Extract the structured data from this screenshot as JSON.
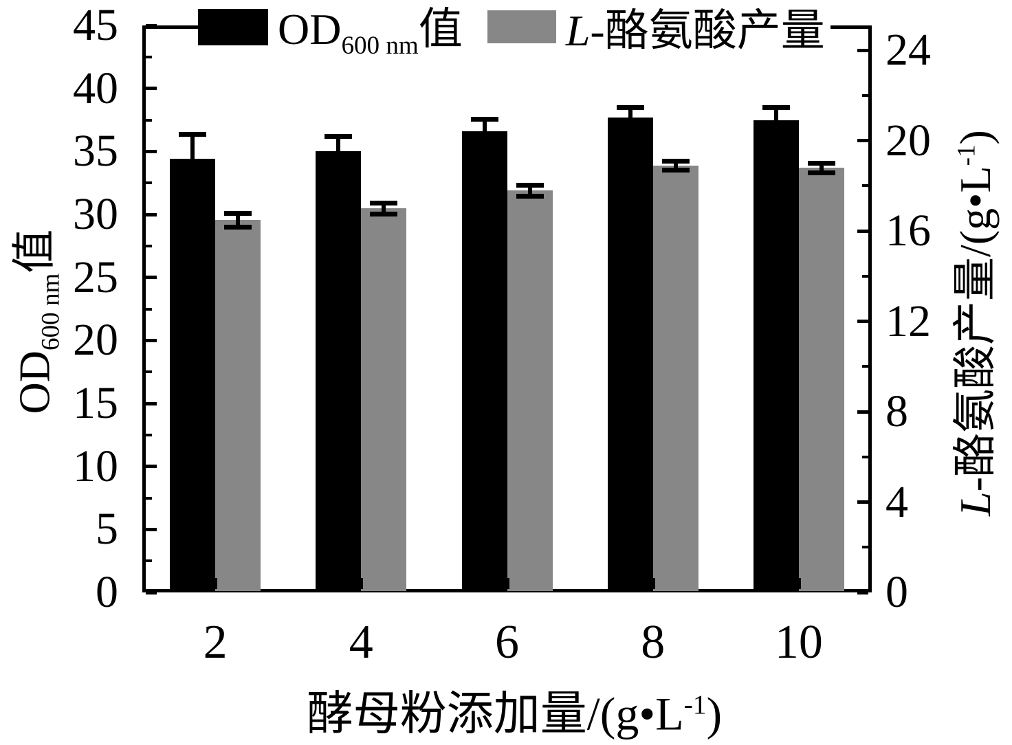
{
  "chart_data": {
    "type": "bar",
    "title": "",
    "categories": [
      "2",
      "4",
      "6",
      "8",
      "10"
    ],
    "series": [
      {
        "name": "OD600nm值",
        "axis": "left",
        "color": "#000000",
        "values": [
          34.4,
          35.0,
          36.6,
          37.7,
          37.5
        ],
        "errors": [
          2.0,
          1.2,
          1.0,
          0.8,
          1.0
        ],
        "error_style": "upper"
      },
      {
        "name": "L-酪氨酸产量",
        "axis": "right",
        "color": "#878787",
        "values": [
          16.5,
          17.0,
          17.8,
          18.9,
          18.8
        ],
        "errors": [
          0.3,
          0.25,
          0.25,
          0.2,
          0.2
        ],
        "error_style": "both"
      }
    ],
    "left_axis": {
      "min": 0,
      "max": 45,
      "major_step": 5,
      "minor_step": 2.5,
      "tick_labels": [
        "0",
        "5",
        "10",
        "15",
        "20",
        "25",
        "30",
        "35",
        "40",
        "45"
      ]
    },
    "right_axis": {
      "min": 0,
      "max_display": 25.1,
      "major_step": 4,
      "minor_step": 2,
      "major_max": 24,
      "tick_labels": [
        "0",
        "4",
        "8",
        "12",
        "16",
        "20",
        "24"
      ]
    },
    "grid": false,
    "legend_position": "top-center"
  },
  "legend": {
    "od": {
      "pre": "OD",
      "sub": "600 nm",
      "post": "值"
    },
    "tyr": {
      "italic": "L",
      "rest": "-酪氨酸产量"
    }
  },
  "left_axis_title": {
    "pre": "OD",
    "sub": "600 nm",
    "post": "值"
  },
  "right_axis_title": {
    "italic": "L",
    "mid": "-酪氨酸产量/(g•L",
    "sup": "-1",
    "close": ")"
  },
  "x_axis_title": {
    "pre": "酵母粉添加量/(g•L",
    "sup": "-1",
    "close": ")"
  },
  "colors": {
    "bar_od": "#000000",
    "bar_tyr": "#878787",
    "axis": "#000000",
    "background": "#ffffff"
  }
}
